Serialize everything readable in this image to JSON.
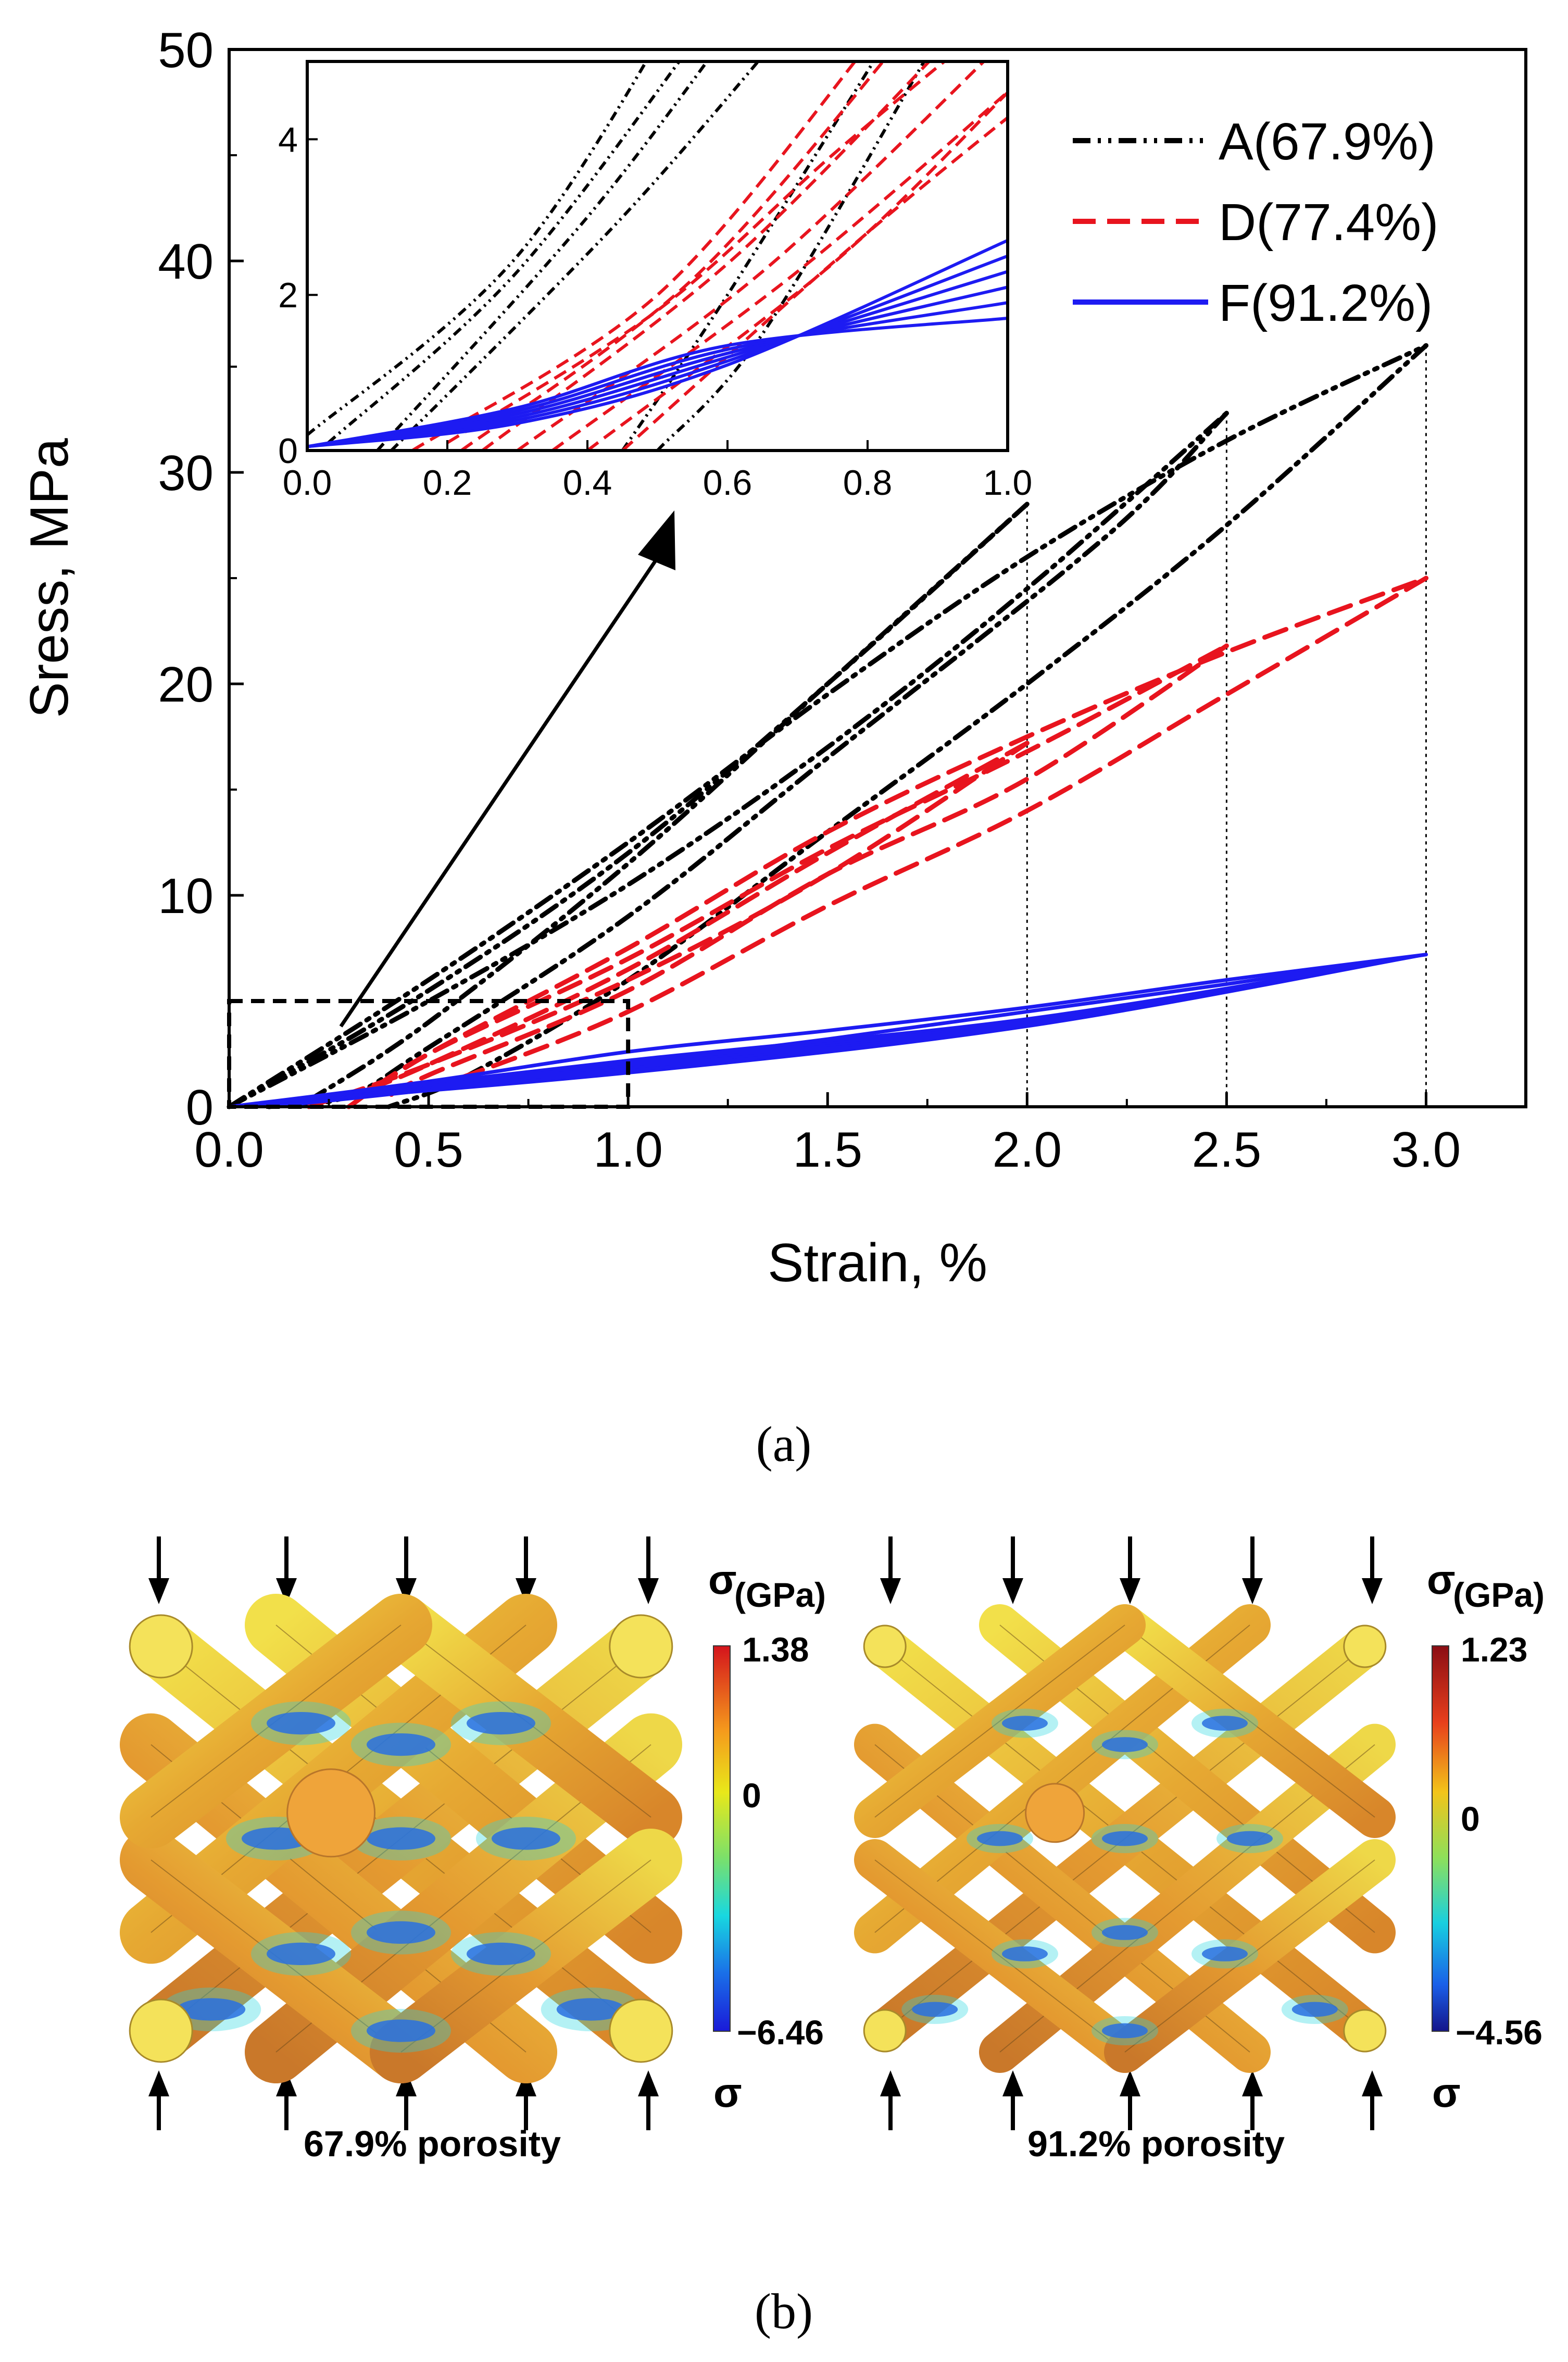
{
  "chart_data": [
    {
      "type": "line",
      "xlabel": "Strain, %",
      "ylabel": "Sress, MPa",
      "xlim": [
        0,
        3.25
      ],
      "ylim": [
        0,
        50
      ],
      "xticks": [
        "0.0",
        "0.5",
        "1.0",
        "1.5",
        "2.0",
        "2.5",
        "3.0"
      ],
      "yticks": [
        "0",
        "10",
        "20",
        "30",
        "40",
        "50"
      ],
      "legend_position": "top-right",
      "series": [
        {
          "name": "A(67.9%)",
          "color": "#000000",
          "style": "dash-dot",
          "loops": [
            {
              "load": [
                [
                  0,
                  0
                ],
                [
                  0.5,
                  5
                ],
                [
                  1,
                  10.5
                ],
                [
                  1.5,
                  17
                ],
                [
                  2,
                  24.5
                ],
                [
                  2.5,
                  32.8
                ]
              ],
              "unload": [
                [
                  2.5,
                  32.8
                ],
                [
                  2.2,
                  27
                ],
                [
                  1.5,
                  16.5
                ],
                [
                  1,
                  9
                ],
                [
                  0.5,
                  2.8
                ],
                [
                  0.3,
                  0.5
                ],
                [
                  0.1,
                  0
                ]
              ]
            },
            {
              "load": [
                [
                  0,
                  0
                ],
                [
                  0.5,
                  5.5
                ],
                [
                  1,
                  12
                ],
                [
                  1.5,
                  20
                ],
                [
                  2,
                  28.5
                ]
              ],
              "unload": [
                [
                  2,
                  28.5
                ],
                [
                  1.5,
                  20
                ],
                [
                  1,
                  11.5
                ],
                [
                  0.5,
                  4
                ],
                [
                  0.2,
                  0.3
                ]
              ]
            },
            {
              "load": [
                [
                  0,
                  0
                ],
                [
                  0.5,
                  6
                ],
                [
                  1,
                  12.5
                ],
                [
                  1.5,
                  19.5
                ],
                [
                  2,
                  26
                ],
                [
                  2.5,
                  31.5
                ],
                [
                  3,
                  36
                ]
              ],
              "unload": [
                [
                  3,
                  36
                ],
                [
                  2.5,
                  27.5
                ],
                [
                  2,
                  20
                ],
                [
                  1.5,
                  13
                ],
                [
                  1,
                  6
                ],
                [
                  0.6,
                  1.5
                ],
                [
                  0.4,
                  0
                ]
              ]
            }
          ]
        },
        {
          "name": "D(77.4%)",
          "color": "#e8141e",
          "style": "dashed",
          "loops": [
            {
              "load": [
                [
                  0.2,
                  0
                ],
                [
                  0.5,
                  2
                ],
                [
                  1,
                  6
                ],
                [
                  1.5,
                  11
                ],
                [
                  2,
                  17.2
                ]
              ],
              "unload": [
                [
                  2,
                  17.2
                ],
                [
                  1.5,
                  12
                ],
                [
                  1,
                  6.5
                ],
                [
                  0.5,
                  2
                ],
                [
                  0.3,
                  0.5
                ]
              ]
            },
            {
              "load": [
                [
                  0.3,
                  0
                ],
                [
                  0.5,
                  2.5
                ],
                [
                  1,
                  7
                ],
                [
                  1.5,
                  12.2
                ],
                [
                  2,
                  16.8
                ],
                [
                  2.5,
                  21.8
                ]
              ],
              "unload": [
                [
                  2.5,
                  21.8
                ],
                [
                  2,
                  15.5
                ],
                [
                  1.5,
                  11
                ],
                [
                  1,
                  5.5
                ],
                [
                  0.5,
                  1.5
                ],
                [
                  0.4,
                  0.5
                ]
              ]
            },
            {
              "load": [
                [
                  0.3,
                  0
                ],
                [
                  0.5,
                  2.5
                ],
                [
                  1,
                  7.5
                ],
                [
                  1.5,
                  13
                ],
                [
                  2,
                  17.5
                ],
                [
                  2.5,
                  21.5
                ],
                [
                  3,
                  25
                ]
              ],
              "unload": [
                [
                  3,
                  25
                ],
                [
                  2.5,
                  19.5
                ],
                [
                  2,
                  14
                ],
                [
                  1.5,
                  9.5
                ],
                [
                  1,
                  4.5
                ],
                [
                  0.6,
                  1.5
                ],
                [
                  0.5,
                  1
                ]
              ]
            }
          ]
        },
        {
          "name": "F(91.2%)",
          "color": "#1d1bf2",
          "style": "solid",
          "loops": [
            {
              "load": [
                [
                  0,
                  0
                ],
                [
                  0.5,
                  1.2
                ],
                [
                  1,
                  2.6
                ],
                [
                  1.5,
                  3.6
                ],
                [
                  2,
                  4.7
                ],
                [
                  2.5,
                  6
                ],
                [
                  3,
                  7.2
                ]
              ],
              "unload": [
                [
                  3,
                  7.2
                ],
                [
                  2.5,
                  5.8
                ],
                [
                  2,
                  4.5
                ],
                [
                  1.5,
                  3.2
                ],
                [
                  1,
                  2
                ],
                [
                  0.5,
                  0.8
                ],
                [
                  0.1,
                  0
                ]
              ]
            }
          ]
        }
      ],
      "guide_lines_x": [
        2.0,
        2.5,
        3.0
      ]
    },
    {
      "type": "line",
      "role": "inset",
      "xlim": [
        0,
        1
      ],
      "ylim": [
        0,
        5
      ],
      "xticks": [
        "0.0",
        "0.2",
        "0.4",
        "0.6",
        "0.8",
        "1.0"
      ],
      "yticks": [
        "0",
        "2",
        "4"
      ]
    }
  ],
  "figure": {
    "label_a": "(a)",
    "label_b": "(b)",
    "sigma_label": "σ",
    "gpa_label": "(GPa)",
    "panels": [
      {
        "caption": "67.9% porosity",
        "scale_max": "1.38",
        "scale_mid": "0",
        "scale_min": "−6.46"
      },
      {
        "caption": "91.2% porosity",
        "scale_max": "1.23",
        "scale_mid": "0",
        "scale_min": "−4.56"
      }
    ]
  }
}
